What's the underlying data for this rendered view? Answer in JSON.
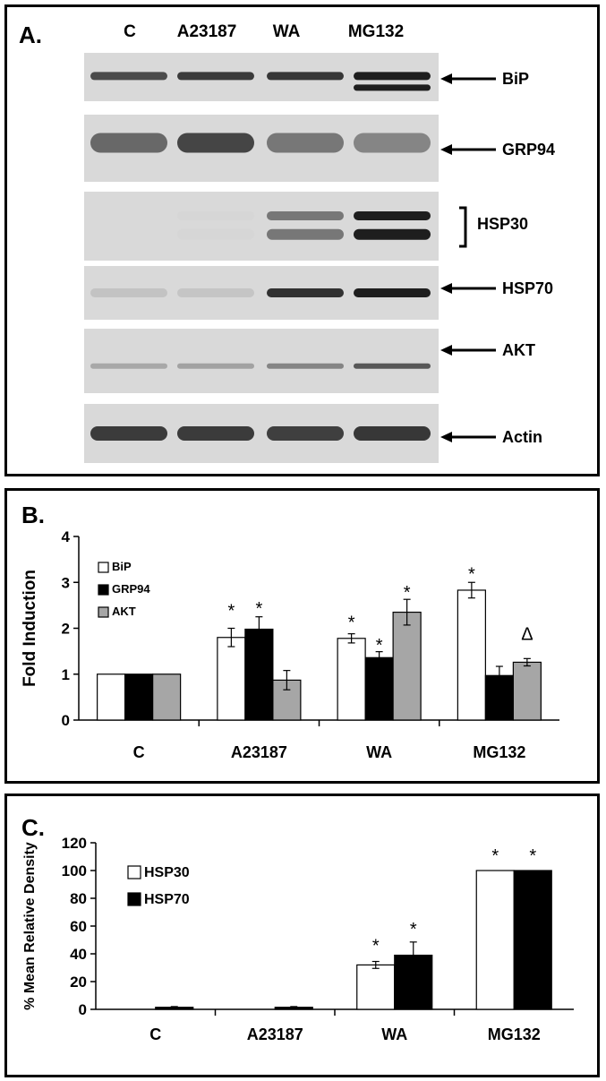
{
  "blot": {
    "panel_label": "A.",
    "lanes": [
      "C",
      "A23187",
      "WA",
      "MG132"
    ],
    "proteins": [
      "BiP",
      "GRP94",
      "HSP30",
      "HSP70",
      "AKT",
      "Actin"
    ],
    "bands": [
      {
        "protein": "BiP",
        "intensity": [
          0.72,
          0.8,
          0.82,
          0.95
        ]
      },
      {
        "protein": "GRP94",
        "intensity": [
          0.6,
          0.75,
          0.55,
          0.5
        ]
      },
      {
        "protein": "HSP30",
        "intensity": [
          0.0,
          0.03,
          0.55,
          0.95
        ]
      },
      {
        "protein": "HSP70",
        "intensity": [
          0.2,
          0.18,
          0.85,
          0.95
        ]
      },
      {
        "protein": "AKT",
        "intensity": [
          0.35,
          0.38,
          0.5,
          0.65
        ]
      },
      {
        "protein": "Actin",
        "intensity": [
          0.8,
          0.8,
          0.78,
          0.82
        ]
      }
    ]
  },
  "chart_data": [
    {
      "panel_label": "B.",
      "type": "bar",
      "title": "",
      "xlabel": "",
      "ylabel": "Fold Induction",
      "ylim": [
        0,
        4
      ],
      "yticks": [
        0,
        1,
        2,
        3,
        4
      ],
      "grid": false,
      "legend": "top-left",
      "categories": [
        "C",
        "A23187",
        "WA",
        "MG132"
      ],
      "series": [
        {
          "name": "BiP",
          "color": "#ffffff",
          "values": [
            1.0,
            1.8,
            1.78,
            2.83
          ],
          "errors": [
            0,
            0.2,
            0.1,
            0.17
          ]
        },
        {
          "name": "GRP94",
          "color": "#000000",
          "values": [
            1.0,
            1.98,
            1.36,
            0.97
          ],
          "errors": [
            0,
            0.27,
            0.13,
            0.2
          ]
        },
        {
          "name": "AKT",
          "color": "#a6a6a6",
          "values": [
            1.0,
            0.87,
            2.35,
            1.26
          ],
          "errors": [
            0,
            0.21,
            0.28,
            0.08
          ]
        }
      ],
      "annotations": [
        {
          "category": "A23187",
          "series": "BiP",
          "text": "*",
          "y": 2.45
        },
        {
          "category": "A23187",
          "series": "GRP94",
          "text": "*",
          "y": 2.5
        },
        {
          "category": "WA",
          "series": "BiP",
          "text": "*",
          "y": 2.2
        },
        {
          "category": "WA",
          "series": "GRP94",
          "text": "*",
          "y": 1.7
        },
        {
          "category": "WA",
          "series": "AKT",
          "text": "*",
          "y": 2.85
        },
        {
          "category": "MG132",
          "series": "BiP",
          "text": "*",
          "y": 3.25
        },
        {
          "category": "MG132",
          "series": "AKT",
          "text": "Δ",
          "y": 1.75
        }
      ]
    },
    {
      "panel_label": "C.",
      "type": "bar",
      "title": "",
      "xlabel": "",
      "ylabel": "% Mean Relative Density",
      "ylim": [
        0,
        120
      ],
      "yticks": [
        0,
        20,
        40,
        60,
        80,
        100,
        120
      ],
      "grid": false,
      "legend": "top-left",
      "categories": [
        "C",
        "A23187",
        "WA",
        "MG132"
      ],
      "series": [
        {
          "name": "HSP30",
          "color": "#ffffff",
          "values": [
            0,
            0,
            32,
            100
          ],
          "errors": [
            0,
            0,
            2.5,
            0
          ]
        },
        {
          "name": "HSP70",
          "color": "#000000",
          "values": [
            1.5,
            1.5,
            39,
            100
          ],
          "errors": [
            0.5,
            0.5,
            9.5,
            0
          ]
        }
      ],
      "annotations": [
        {
          "category": "WA",
          "series": "HSP30",
          "text": "*",
          "y": 48
        },
        {
          "category": "WA",
          "series": "HSP70",
          "text": "*",
          "y": 60
        },
        {
          "category": "MG132",
          "series": "HSP30",
          "text": "*",
          "y": 113
        },
        {
          "category": "MG132",
          "series": "HSP70",
          "text": "*",
          "y": 113
        }
      ]
    }
  ]
}
